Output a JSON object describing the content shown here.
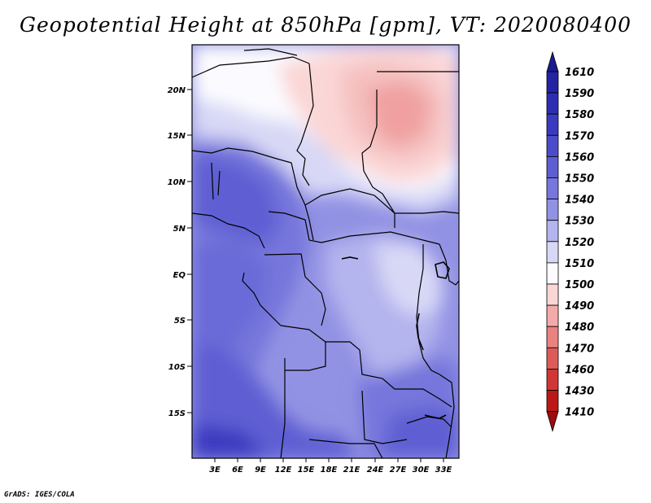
{
  "title": "Geopotential Height at 850hPa [gpm], VT: 2020080400",
  "credit": "GrADS: IGES/COLA",
  "map": {
    "lat_labels": [
      "20N",
      "15N",
      "10N",
      "5N",
      "EQ",
      "5S",
      "10S",
      "15S"
    ],
    "lon_labels": [
      "3E",
      "6E",
      "9E",
      "12E",
      "15E",
      "18E",
      "21E",
      "24E",
      "27E",
      "30E",
      "33E"
    ]
  },
  "colorbar": {
    "levels": [
      "1610",
      "1590",
      "1580",
      "1570",
      "1560",
      "1550",
      "1540",
      "1530",
      "1520",
      "1510",
      "1500",
      "1490",
      "1480",
      "1470",
      "1460",
      "1430",
      "1410"
    ],
    "colors": [
      "#1a1a8f",
      "#2323a3",
      "#2d2db4",
      "#3a3ac0",
      "#4b4bcb",
      "#5e5ed3",
      "#7676dc",
      "#9292e4",
      "#b4b4ee",
      "#d8d8f6",
      "#fbfbff",
      "#fbd6d6",
      "#f5aaaa",
      "#ea8282",
      "#de5a5a",
      "#d03636",
      "#bb1818",
      "#9c0c0c"
    ]
  }
}
